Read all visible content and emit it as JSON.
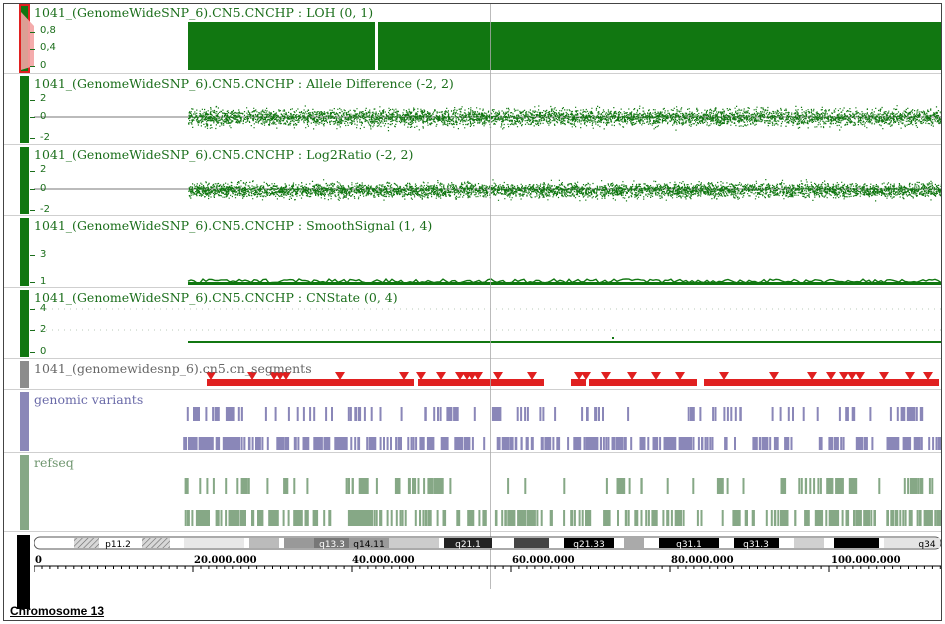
{
  "colors": {
    "green": "#117711",
    "red": "#e02020",
    "purple": "#8a87b8",
    "sage": "#86a886",
    "gray": "#8c8c8c"
  },
  "tracks": {
    "loh": {
      "title": "1041_(GenomeWideSNP_6).CN5.CNCHP : LOH (0, 1)",
      "ticks": [
        "0,8",
        "0,4",
        "0"
      ]
    },
    "ad": {
      "title": "1041_(GenomeWideSNP_6).CN5.CNCHP : Allele Difference (-2, 2)",
      "ticks": [
        "2",
        "0",
        "-2"
      ]
    },
    "l2r": {
      "title": "1041_(GenomeWideSNP_6).CN5.CNCHP : Log2Ratio (-2, 2)",
      "ticks": [
        "2",
        "0",
        "-2"
      ]
    },
    "ss": {
      "title": "1041_(GenomeWideSNP_6).CN5.CNCHP : SmoothSignal (1, 4)",
      "ticks": [
        "3",
        "1"
      ]
    },
    "cns": {
      "title": "1041_(GenomeWideSNP_6).CN5.CNCHP : CNState (0, 4)",
      "ticks": [
        "4",
        "2",
        "0"
      ]
    },
    "seg": {
      "title": "1041_(genomewidesnp_6).cn5.cn_segments"
    },
    "gv": {
      "title": "genomic variants"
    },
    "refseq": {
      "title": "refseq"
    }
  },
  "ideogram": {
    "bands": [
      {
        "label": "p11.2"
      },
      {
        "label": "q13.3"
      },
      {
        "label": "q14.11"
      },
      {
        "label": "q21.1"
      },
      {
        "label": "q21.33"
      },
      {
        "label": "q31.1"
      },
      {
        "label": "q31.3"
      },
      {
        "label": "q34"
      }
    ]
  },
  "axis": {
    "labels": [
      "0",
      "20.000.000",
      "40.000.000",
      "60.000.000",
      "80.000.000",
      "100.000.000"
    ]
  },
  "chromosome_label": "Chromosome 13"
}
